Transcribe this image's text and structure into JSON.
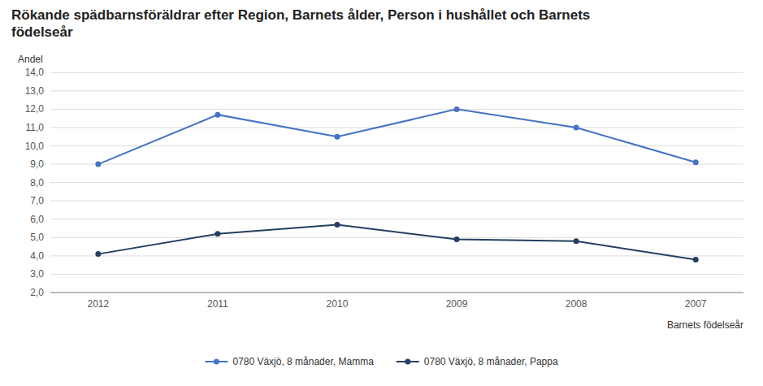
{
  "chart_data": {
    "type": "line",
    "title": "Rökande spädbarnsföräldrar efter Region, Barnets ålder, Person i hushållet och Barnets\nfödelseår",
    "y_label": "Andel",
    "x_label": "Barnets födelseår",
    "categories": [
      "2012",
      "2011",
      "2010",
      "2009",
      "2008",
      "2007"
    ],
    "series": [
      {
        "name": "0780 Växjö, 8 månader, Mamma",
        "color": "#4472C4",
        "marker": "circle",
        "values": [
          9.0,
          11.7,
          10.5,
          12.0,
          11.0,
          9.1
        ]
      },
      {
        "name": "0780 Växjö, 8 månader, Pappa",
        "color": "#243F61",
        "marker": "circle",
        "values": [
          4.1,
          5.2,
          5.7,
          4.9,
          4.8,
          3.8
        ]
      }
    ],
    "ylim": [
      2.0,
      14.0
    ],
    "yticks": [
      {
        "value": 2.0,
        "label": "2,0"
      },
      {
        "value": 3.0,
        "label": "3,0"
      },
      {
        "value": 4.0,
        "label": "4,0"
      },
      {
        "value": 5.0,
        "label": "5,0"
      },
      {
        "value": 6.0,
        "label": "6,0"
      },
      {
        "value": 7.0,
        "label": "7,0"
      },
      {
        "value": 8.0,
        "label": "8,0"
      },
      {
        "value": 9.0,
        "label": "9,0"
      },
      {
        "value": 10.0,
        "label": "10,0"
      },
      {
        "value": 11.0,
        "label": "11,0"
      },
      {
        "value": 12.0,
        "label": "12,0"
      },
      {
        "value": 13.0,
        "label": "13,0"
      },
      {
        "value": 14.0,
        "label": "14,0"
      }
    ],
    "grid": true,
    "legend": "bottom"
  }
}
